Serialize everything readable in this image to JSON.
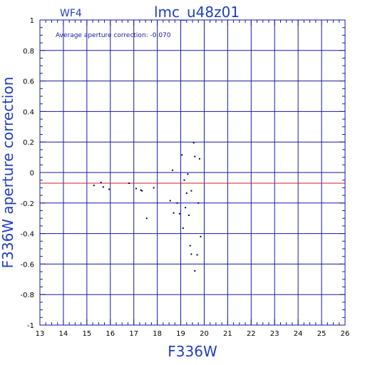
{
  "chart_data": {
    "type": "scatter",
    "title": "lmc_u48z01",
    "chip_label": "WF4",
    "annotation": "Average aperture correction: -0.070",
    "xlabel": "F336W",
    "ylabel": "F336W aperture correction",
    "xlim": [
      13,
      26
    ],
    "ylim": [
      -1,
      1
    ],
    "x_ticks": [
      13,
      14,
      15,
      16,
      17,
      18,
      19,
      20,
      21,
      22,
      23,
      24,
      25,
      26
    ],
    "y_ticks": [
      -1,
      -0.8,
      -0.6,
      -0.4,
      -0.2,
      0,
      0.2,
      0.4,
      0.6,
      0.8,
      1
    ],
    "y_tick_labels": [
      "-1",
      "-0.8",
      "-0.6",
      "-0.4",
      "-0.2",
      "0",
      "0.2",
      "0.4",
      "0.6",
      "0.8",
      "1"
    ],
    "grid": true,
    "reference_line": {
      "y": -0.07,
      "color": "#cc2222"
    },
    "colors": {
      "frame": "#1a1aa0",
      "grid": "#1a1aa0",
      "points": "#000060",
      "text": "#1f3fbf"
    },
    "points": [
      {
        "x": 15.3,
        "y": -0.085
      },
      {
        "x": 15.6,
        "y": -0.065
      },
      {
        "x": 15.7,
        "y": -0.095
      },
      {
        "x": 15.95,
        "y": -0.11
      },
      {
        "x": 16.8,
        "y": -0.07
      },
      {
        "x": 17.1,
        "y": -0.105
      },
      {
        "x": 17.3,
        "y": -0.115
      },
      {
        "x": 17.35,
        "y": -0.12
      },
      {
        "x": 17.55,
        "y": -0.3
      },
      {
        "x": 17.85,
        "y": -0.1
      },
      {
        "x": 18.55,
        "y": -0.185
      },
      {
        "x": 18.65,
        "y": 0.015
      },
      {
        "x": 18.7,
        "y": -0.265
      },
      {
        "x": 18.85,
        "y": -0.2
      },
      {
        "x": 18.95,
        "y": -0.27
      },
      {
        "x": 19.05,
        "y": 0.115
      },
      {
        "x": 19.1,
        "y": -0.365
      },
      {
        "x": 19.15,
        "y": -0.05
      },
      {
        "x": 19.2,
        "y": -0.23
      },
      {
        "x": 19.25,
        "y": -0.135
      },
      {
        "x": 19.3,
        "y": -0.01
      },
      {
        "x": 19.35,
        "y": -0.28
      },
      {
        "x": 19.4,
        "y": -0.48
      },
      {
        "x": 19.45,
        "y": -0.12
      },
      {
        "x": 19.45,
        "y": -0.535
      },
      {
        "x": 19.55,
        "y": 0.195
      },
      {
        "x": 19.6,
        "y": 0.105
      },
      {
        "x": 19.6,
        "y": -0.645
      },
      {
        "x": 19.7,
        "y": -0.54
      },
      {
        "x": 19.75,
        "y": -0.2
      },
      {
        "x": 19.8,
        "y": 0.09
      },
      {
        "x": 19.85,
        "y": -0.42
      }
    ]
  }
}
